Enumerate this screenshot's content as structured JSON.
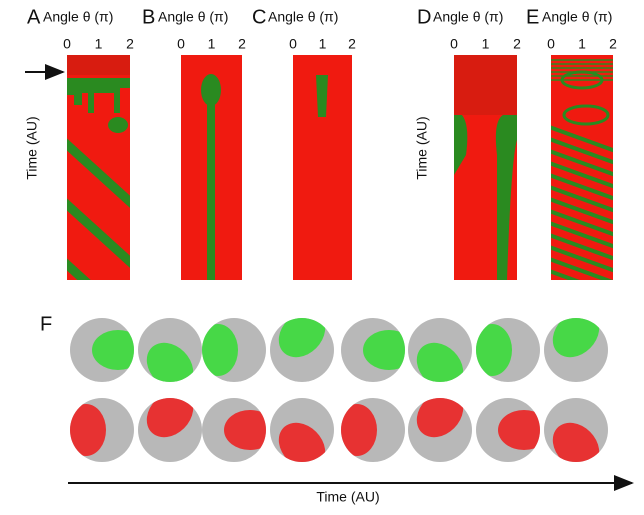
{
  "panels": [
    {
      "letter": "A",
      "xlabel": "Angle θ (π)",
      "xticks": [
        0,
        1,
        2
      ],
      "ylabel": "Time (AU)"
    },
    {
      "letter": "B",
      "xlabel": "Angle θ (π)",
      "xticks": [
        0,
        1,
        2
      ]
    },
    {
      "letter": "C",
      "xlabel": "Angle θ (π)",
      "xticks": [
        0,
        1,
        2
      ]
    },
    {
      "letter": "D",
      "xlabel": "Angle θ (π)",
      "xticks": [
        0,
        1,
        2
      ],
      "ylabel": "Time (AU)"
    },
    {
      "letter": "E",
      "xlabel": "Angle θ (π)",
      "xticks": [
        0,
        1,
        2
      ]
    }
  ],
  "panel_f": {
    "letter": "F",
    "xlabel": "Time (AU)"
  }
}
